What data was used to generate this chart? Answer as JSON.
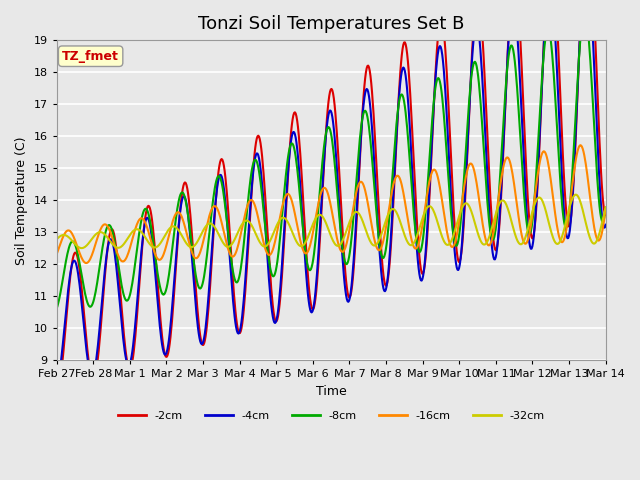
{
  "title": "Tonzi Soil Temperatures Set B",
  "xlabel": "Time",
  "ylabel": "Soil Temperature (C)",
  "ylim": [
    9.0,
    19.0
  ],
  "yticks": [
    9.0,
    10.0,
    11.0,
    12.0,
    13.0,
    14.0,
    15.0,
    16.0,
    17.0,
    18.0,
    19.0
  ],
  "xtick_labels": [
    "Feb 27",
    "Feb 28",
    "Mar 1",
    "Mar 2",
    "Mar 3",
    "Mar 4",
    "Mar 5",
    "Mar 6",
    "Mar 7",
    "Mar 8",
    "Mar 9",
    "Mar 10",
    "Mar 11",
    "Mar 12",
    "Mar 13",
    "Mar 14"
  ],
  "series": [
    {
      "label": "-2cm",
      "color": "#dd0000",
      "lw": 1.5
    },
    {
      "label": "-4cm",
      "color": "#0000cc",
      "lw": 1.5
    },
    {
      "label": "-8cm",
      "color": "#00aa00",
      "lw": 1.5
    },
    {
      "label": "-16cm",
      "color": "#ff8800",
      "lw": 1.5
    },
    {
      "label": "-32cm",
      "color": "#cccc00",
      "lw": 1.5
    }
  ],
  "legend_annotation": {
    "text": "TZ_fmet",
    "text_color": "#cc0000",
    "bg_color": "#ffffcc",
    "border_color": "#999999"
  },
  "bg_color": "#e8e8e8",
  "plot_bg_color": "#e8e8e8",
  "grid_color": "#ffffff",
  "title_fontsize": 13,
  "n_days": 15,
  "pts_per_day": 48
}
